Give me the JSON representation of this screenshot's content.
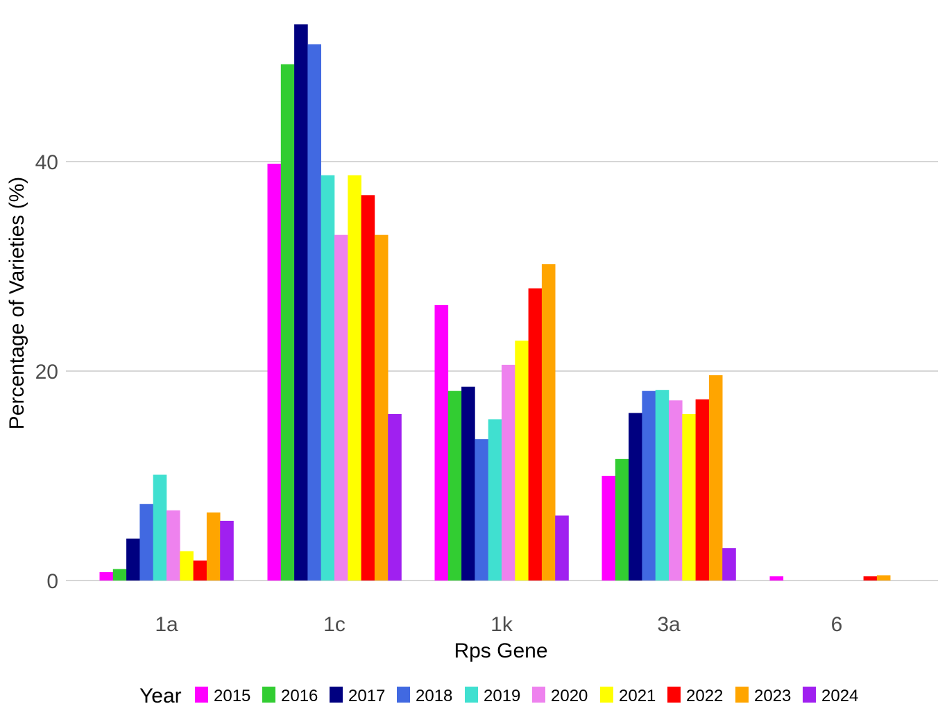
{
  "chart_data": {
    "type": "bar",
    "xlabel": "Rps Gene",
    "ylabel": "Percentage of Varieties (%)",
    "categories": [
      "1a",
      "1c",
      "1k",
      "3a",
      "6"
    ],
    "ylim": [
      0,
      53
    ],
    "yticks": [
      "0",
      "20",
      "40"
    ],
    "grid": "horizontal major",
    "legend": {
      "title": "Year",
      "position": "bottom"
    },
    "series": [
      {
        "name": "2015",
        "color": "#FF00FF",
        "values": [
          0.8,
          39.8,
          26.3,
          10.0,
          0.4
        ]
      },
      {
        "name": "2016",
        "color": "#32CD32",
        "values": [
          1.1,
          49.3,
          18.1,
          11.6,
          0
        ]
      },
      {
        "name": "2017",
        "color": "#000080",
        "values": [
          4.0,
          53.1,
          18.5,
          16.0,
          0
        ]
      },
      {
        "name": "2018",
        "color": "#4169E1",
        "values": [
          7.3,
          51.2,
          13.5,
          18.1,
          0
        ]
      },
      {
        "name": "2019",
        "color": "#40E0D0",
        "values": [
          10.1,
          38.7,
          15.4,
          18.2,
          0
        ]
      },
      {
        "name": "2020",
        "color": "#EE82EE",
        "values": [
          6.7,
          33.0,
          20.6,
          17.2,
          0
        ]
      },
      {
        "name": "2021",
        "color": "#FFFF00",
        "values": [
          2.8,
          38.7,
          22.9,
          15.9,
          0
        ]
      },
      {
        "name": "2022",
        "color": "#FF0000",
        "values": [
          1.9,
          36.8,
          27.9,
          17.3,
          0.4
        ]
      },
      {
        "name": "2023",
        "color": "#FFA500",
        "values": [
          6.5,
          33.0,
          30.2,
          19.6,
          0.5
        ]
      },
      {
        "name": "2024",
        "color": "#A020F0",
        "values": [
          5.7,
          15.9,
          6.2,
          3.1,
          0
        ]
      }
    ]
  }
}
